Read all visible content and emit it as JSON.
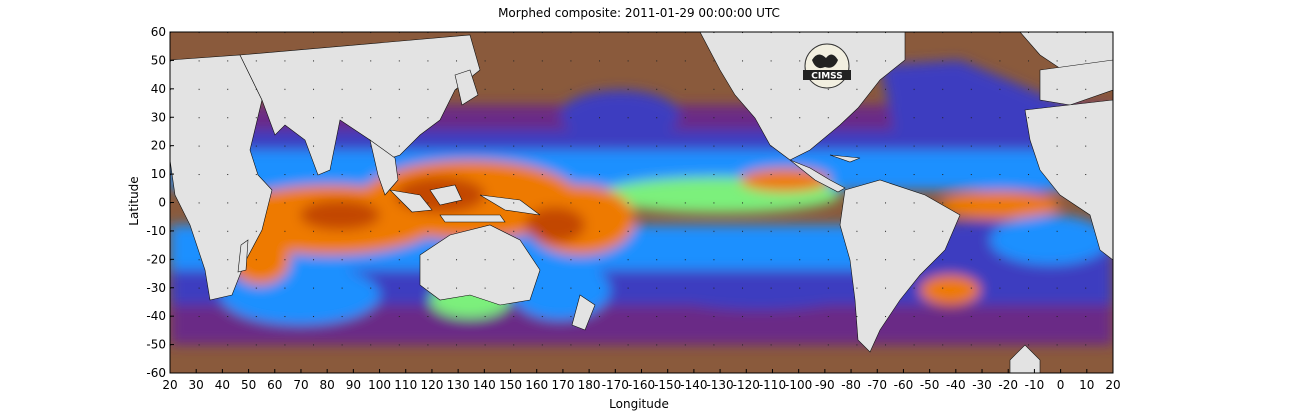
{
  "title": "Morphed composite: 2011-01-29 00:00:00 UTC",
  "xlabel": "Longitude",
  "ylabel": "Latitude",
  "x_ticks": [
    "20",
    "30",
    "40",
    "50",
    "60",
    "70",
    "80",
    "90",
    "100",
    "110",
    "120",
    "130",
    "140",
    "150",
    "160",
    "170",
    "180",
    "-170",
    "-160",
    "-150",
    "-140",
    "-130",
    "-120",
    "-110",
    "-100",
    "-90",
    "-80",
    "-70",
    "-60",
    "-50",
    "-40",
    "-30",
    "-20",
    "-10",
    "0",
    "10",
    "20"
  ],
  "y_ticks": [
    "60",
    "50",
    "40",
    "30",
    "20",
    "10",
    "0",
    "-10",
    "-20",
    "-30",
    "-40",
    "-50",
    "-60"
  ],
  "logo_text": "CIMSS",
  "colors": {
    "land": "#e3e3e3",
    "very_dry": "#8a5a3c",
    "dry": "#6a2a86",
    "mid_dry": "#3c3cc0",
    "moist": "#1e90ff",
    "wetter": "#3fdcdc",
    "wet": "#7cf07c",
    "very_wet": "#ee7a00",
    "wettest": "#c24600"
  }
}
